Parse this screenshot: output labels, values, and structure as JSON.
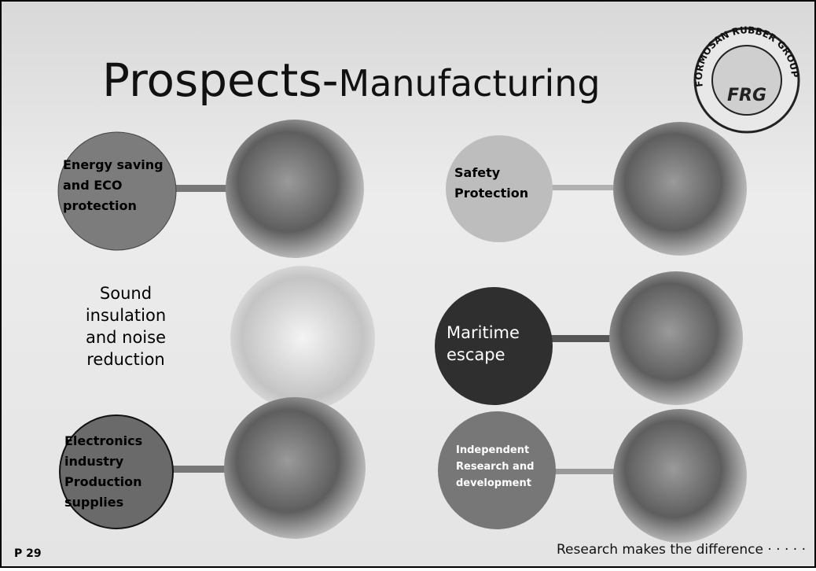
{
  "header": {
    "title_main": "Prospects-",
    "title_sub": "Manufacturing"
  },
  "logo": {
    "ring_text": "FORMOSAN RUBBER GROUP",
    "center": "FRG"
  },
  "items": [
    {
      "label": [
        "Energy saving",
        "and ECO",
        "protection"
      ]
    },
    {
      "label": [
        "Safety",
        "Protection"
      ]
    },
    {
      "label": [
        "Sound",
        "insulation",
        "and noise",
        "reduction"
      ]
    },
    {
      "label": [
        "Maritime",
        "escape"
      ]
    },
    {
      "label": [
        "Electronics",
        "industry",
        "Production",
        "supplies"
      ]
    },
    {
      "label": [
        "Independent",
        "Research and",
        "development"
      ]
    }
  ],
  "footer": {
    "page": "P 29",
    "tagline": "Research makes the difference · · · · ·"
  }
}
